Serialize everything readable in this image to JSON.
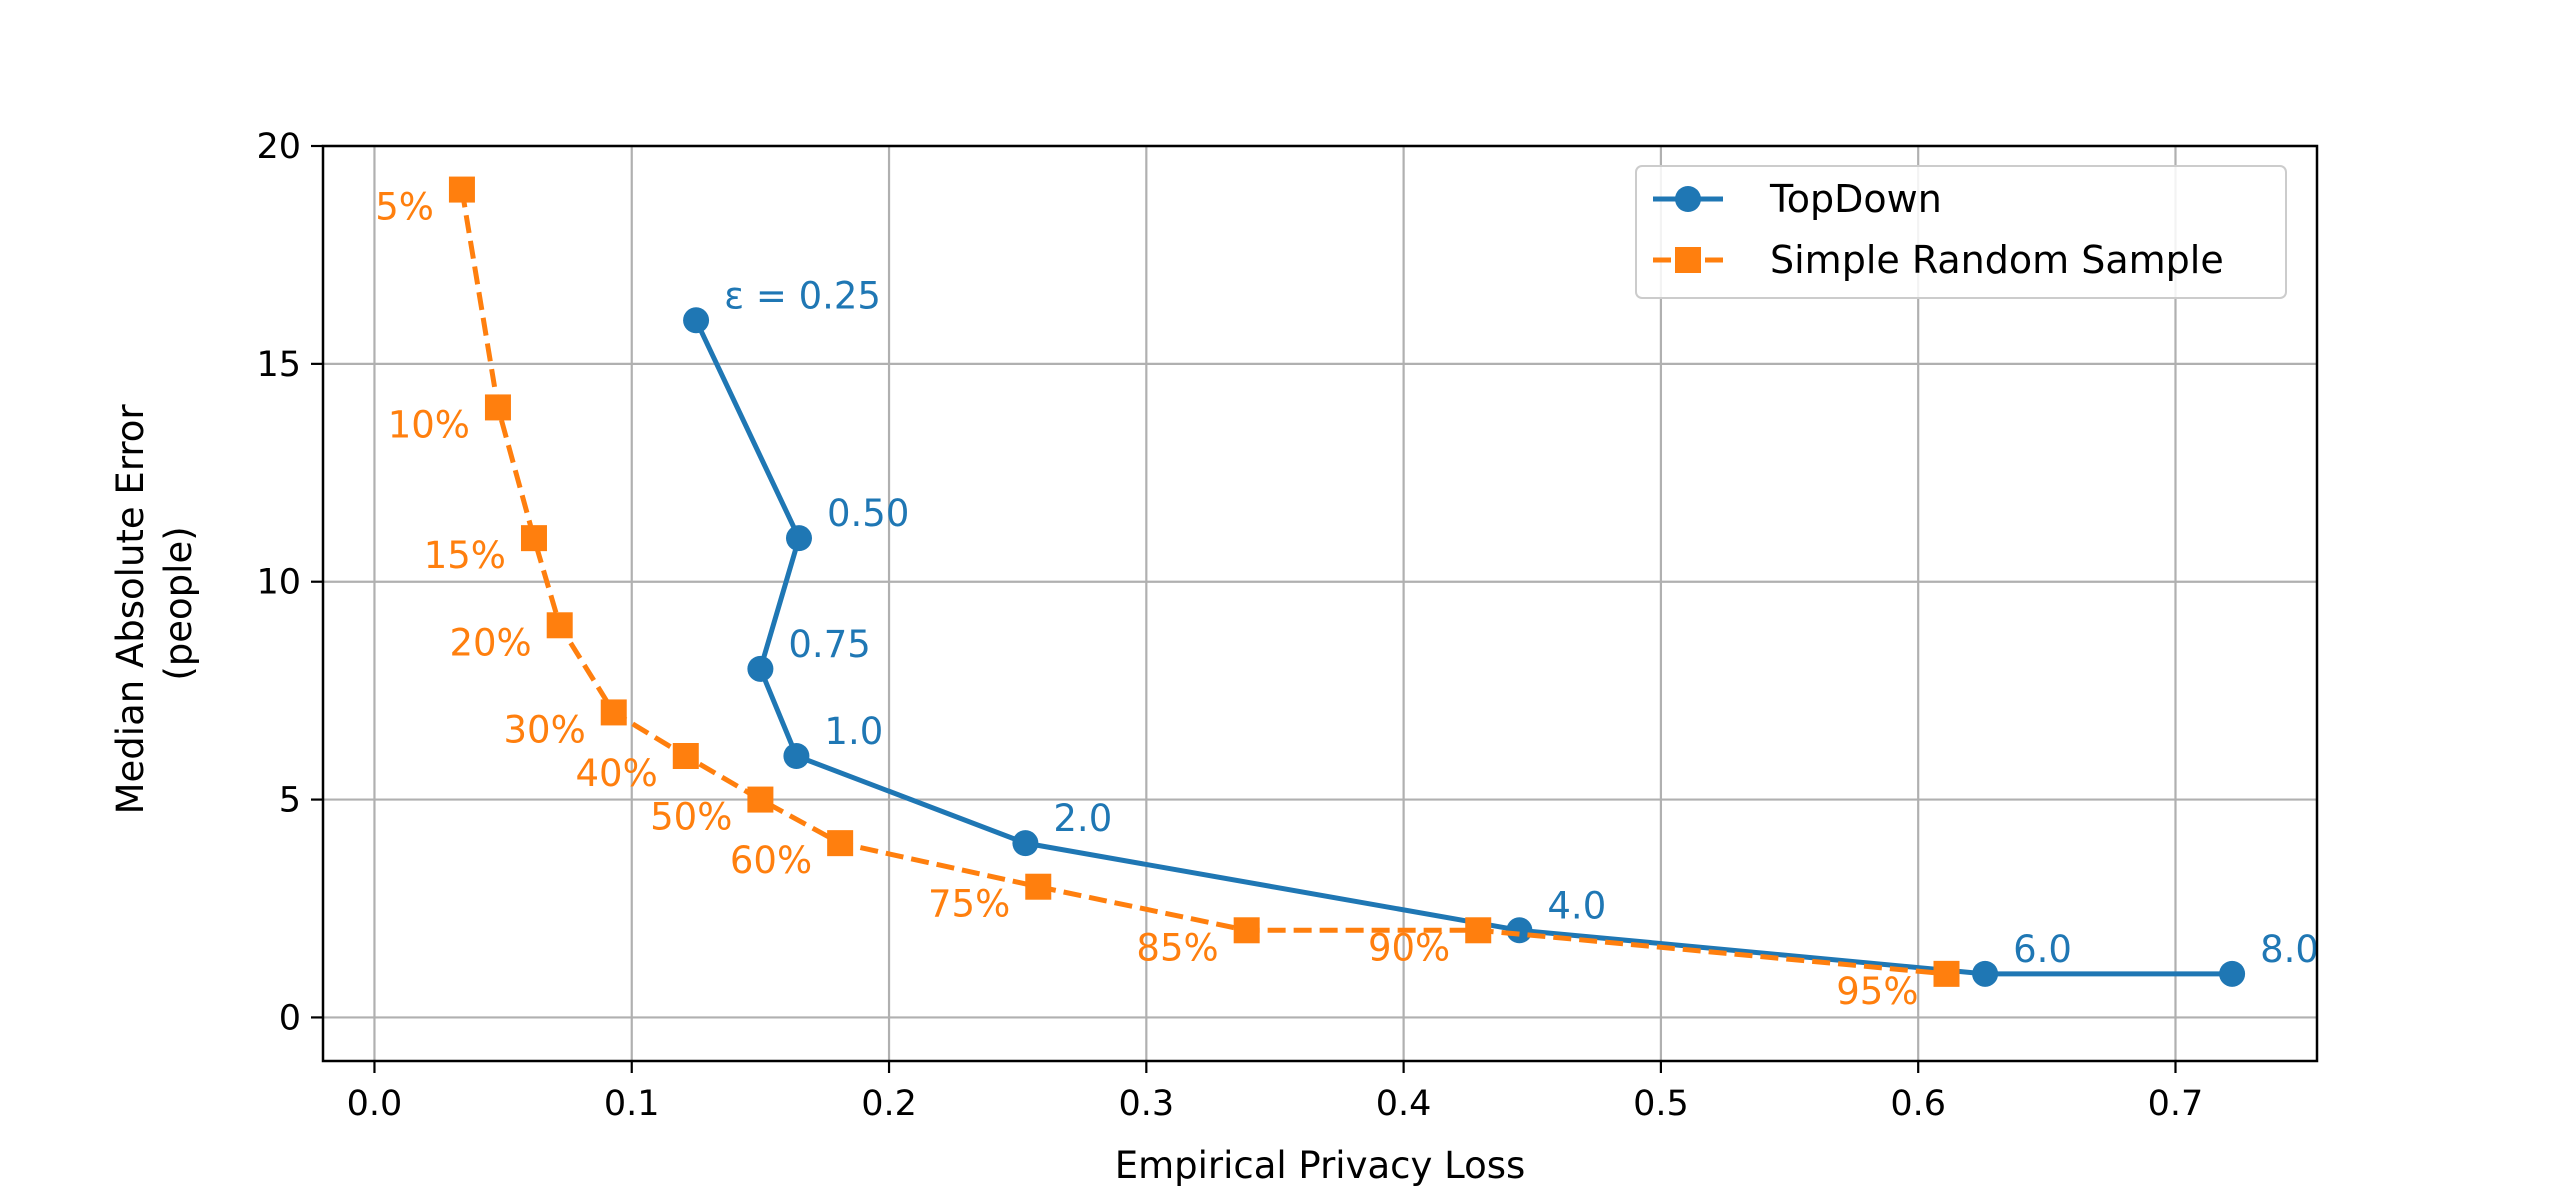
{
  "chart_data": {
    "type": "line",
    "xlabel": "Empirical Privacy Loss",
    "ylabel_lines": [
      "Median Absolute Error",
      "(people)"
    ],
    "xlim": [
      -0.02,
      0.755
    ],
    "ylim": [
      -1,
      20
    ],
    "xticks": [
      0.0,
      0.1,
      0.2,
      0.3,
      0.4,
      0.5,
      0.6,
      0.7
    ],
    "xtick_labels": [
      "0.0",
      "0.1",
      "0.2",
      "0.3",
      "0.4",
      "0.5",
      "0.6",
      "0.7"
    ],
    "yticks": [
      0,
      5,
      10,
      15,
      20
    ],
    "ytick_labels": [
      "0",
      "5",
      "10",
      "15",
      "20"
    ],
    "grid": true,
    "legend_position": "top-right",
    "series": [
      {
        "name": "TopDown",
        "color": "#1f77b4",
        "marker": "circle",
        "linestyle": "solid",
        "points": [
          {
            "x": 0.125,
            "y": 16,
            "label": "ε = 0.25"
          },
          {
            "x": 0.165,
            "y": 11,
            "label": "0.50"
          },
          {
            "x": 0.15,
            "y": 8,
            "label": "0.75"
          },
          {
            "x": 0.164,
            "y": 6,
            "label": "1.0"
          },
          {
            "x": 0.253,
            "y": 4,
            "label": "2.0"
          },
          {
            "x": 0.445,
            "y": 2,
            "label": "4.0"
          },
          {
            "x": 0.626,
            "y": 1,
            "label": "6.0"
          },
          {
            "x": 0.722,
            "y": 1,
            "label": "8.0"
          }
        ]
      },
      {
        "name": "Simple Random Sample",
        "color": "#ff7f0e",
        "marker": "square",
        "linestyle": "dashed",
        "points": [
          {
            "x": 0.034,
            "y": 19,
            "label": "5%"
          },
          {
            "x": 0.048,
            "y": 14,
            "label": "10%"
          },
          {
            "x": 0.062,
            "y": 11,
            "label": "15%"
          },
          {
            "x": 0.072,
            "y": 9,
            "label": "20%"
          },
          {
            "x": 0.093,
            "y": 7,
            "label": "30%"
          },
          {
            "x": 0.121,
            "y": 6,
            "label": "40%"
          },
          {
            "x": 0.15,
            "y": 5,
            "label": "50%"
          },
          {
            "x": 0.181,
            "y": 4,
            "label": "60%"
          },
          {
            "x": 0.258,
            "y": 3,
            "label": "75%"
          },
          {
            "x": 0.339,
            "y": 2,
            "label": "85%"
          },
          {
            "x": 0.429,
            "y": 2,
            "label": "90%"
          },
          {
            "x": 0.611,
            "y": 1,
            "label": "95%"
          }
        ]
      }
    ]
  }
}
